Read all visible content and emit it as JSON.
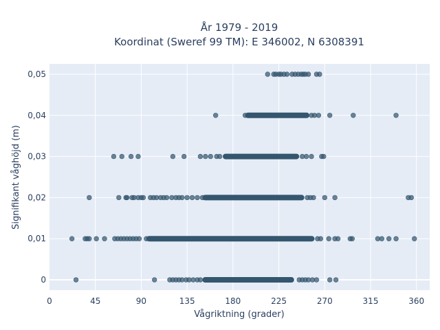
{
  "chart_data": {
    "type": "scatter",
    "title_line1": "År 1979 - 2019",
    "title_line2": "Koordinat (Sweref 99 TM): E 346002, N 6308391",
    "xlabel": "Vågriktning (grader)",
    "ylabel": "Signifikant våghöjd (m)",
    "xlim": [
      0,
      373
    ],
    "ylim": [
      -0.0025,
      0.0525
    ],
    "x_ticks": [
      0,
      45,
      90,
      135,
      180,
      225,
      270,
      315,
      360
    ],
    "x_tick_labels": [
      "0",
      "45",
      "90",
      "135",
      "180",
      "225",
      "270",
      "315",
      "360"
    ],
    "y_ticks": [
      0,
      0.01,
      0.02,
      0.03,
      0.04,
      0.05
    ],
    "y_tick_labels": [
      "0",
      "0,01",
      "0,02",
      "0,03",
      "0,04",
      "0,05"
    ],
    "grid": true,
    "colors": {
      "background": "#e5ecf6",
      "grid": "#ffffff",
      "marker": "#34566e"
    },
    "series": [
      {
        "y": 0,
        "dense_range": [
          150,
          240
        ],
        "points": [
          26,
          103,
          118,
          121,
          124,
          127,
          130,
          134,
          137,
          141,
          145,
          148,
          245,
          248,
          251,
          254,
          258,
          262,
          275,
          281
        ]
      },
      {
        "y": 0.01,
        "dense_range": [
          95,
          260
        ],
        "points": [
          22,
          35,
          37,
          39,
          46,
          54,
          64,
          67,
          70,
          73,
          76,
          79,
          82,
          85,
          88,
          95,
          263,
          266,
          274,
          280,
          283,
          295,
          297,
          322,
          326,
          333,
          340,
          358
        ]
      },
      {
        "y": 0.02,
        "dense_range": [
          150,
          250
        ],
        "points": [
          39,
          68,
          75,
          76,
          81,
          83,
          87,
          90,
          92,
          99,
          102,
          105,
          109,
          112,
          115,
          120,
          124,
          127,
          130,
          135,
          140,
          145,
          150,
          253,
          256,
          259,
          270,
          280,
          352,
          355
        ]
      },
      {
        "y": 0.03,
        "dense_range": [
          170,
          245
        ],
        "points": [
          63,
          71,
          80,
          87,
          121,
          132,
          148,
          153,
          158,
          164,
          167,
          248,
          252,
          257,
          267,
          269
        ]
      },
      {
        "y": 0.04,
        "dense_range": [
          192,
          255
        ],
        "points": [
          163,
          192,
          257,
          260,
          264,
          275,
          298,
          340
        ]
      },
      {
        "y": 0.05,
        "points": [
          214,
          220,
          222,
          225,
          227,
          230,
          233,
          238,
          241,
          244,
          247,
          249,
          251,
          254,
          262,
          265
        ]
      }
    ]
  }
}
